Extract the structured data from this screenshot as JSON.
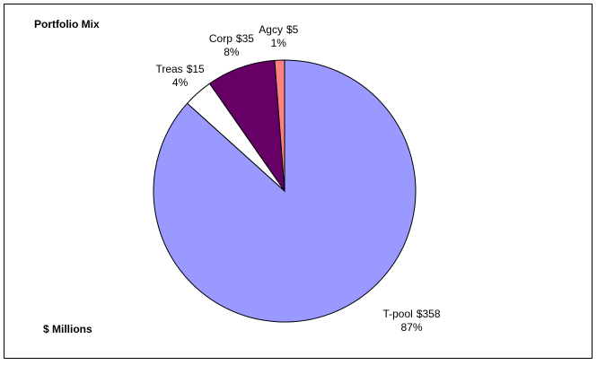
{
  "chart_data": {
    "type": "pie",
    "title": "Portfolio Mix",
    "annotation": "$ Millions",
    "categories": [
      "T-pool",
      "Treas",
      "Corp",
      "Agcy"
    ],
    "values": [
      358,
      15,
      35,
      5
    ],
    "value_labels": [
      "$358",
      "$15",
      "$35",
      "$5"
    ],
    "shares": [
      87,
      4,
      8,
      1
    ],
    "share_labels": [
      "87%",
      "4%",
      "8%",
      "1%"
    ],
    "colors": [
      "#9999ff",
      "#ffffff",
      "#660066",
      "#ff8080"
    ]
  }
}
